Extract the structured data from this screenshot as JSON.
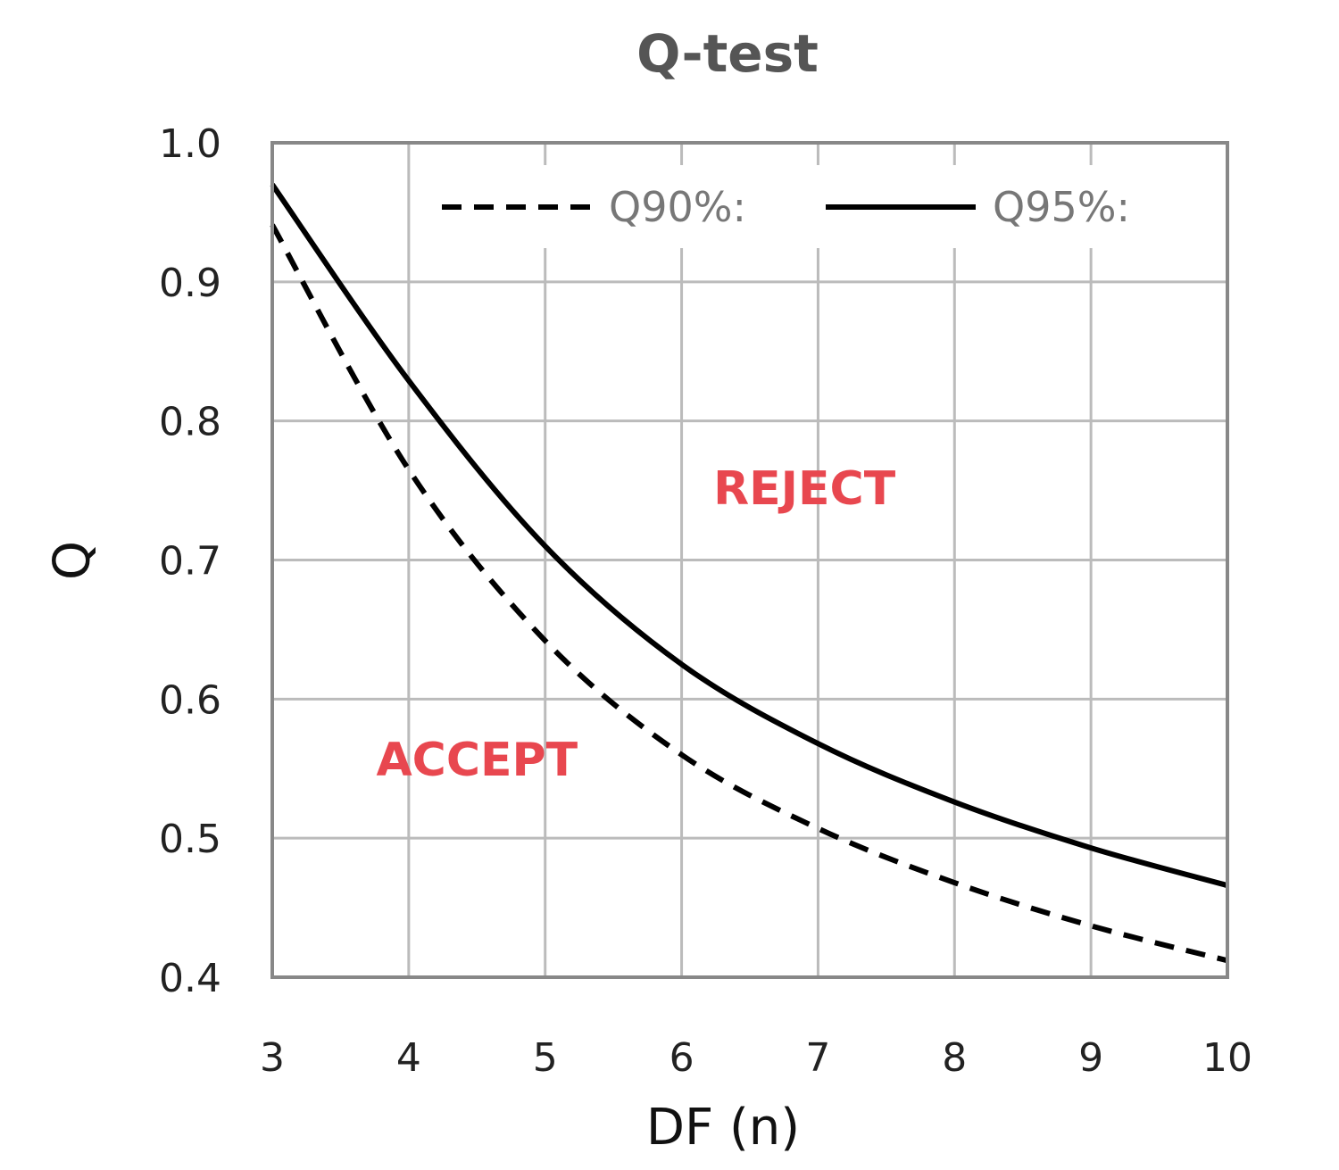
{
  "chart_data": {
    "type": "line",
    "title": "Q-test",
    "xlabel": "DF (n)",
    "ylabel": "Q",
    "xlim": [
      3,
      10
    ],
    "ylim": [
      0.4,
      1.0
    ],
    "x_ticks": [
      "3",
      "4",
      "5",
      "6",
      "7",
      "8",
      "9",
      "10"
    ],
    "y_ticks": [
      "0.4",
      "0.5",
      "0.6",
      "0.7",
      "0.8",
      "0.9",
      "1.0"
    ],
    "grid": true,
    "legend_position": "top-right",
    "x": [
      3,
      4,
      5,
      6,
      7,
      8,
      9,
      10
    ],
    "series": [
      {
        "name": "Q90%:",
        "style": "dashed",
        "color": "#000000",
        "values": [
          0.941,
          0.765,
          0.642,
          0.56,
          0.507,
          0.468,
          0.437,
          0.412
        ]
      },
      {
        "name": "Q95%:",
        "style": "solid",
        "color": "#000000",
        "values": [
          0.97,
          0.829,
          0.71,
          0.625,
          0.568,
          0.526,
          0.493,
          0.466
        ]
      }
    ],
    "annotations": [
      {
        "text": "REJECT",
        "x": 6.9,
        "y": 0.74,
        "color": "#e8474f"
      },
      {
        "text": "ACCEPT",
        "x": 4.5,
        "y": 0.545,
        "color": "#e8474f"
      }
    ]
  }
}
